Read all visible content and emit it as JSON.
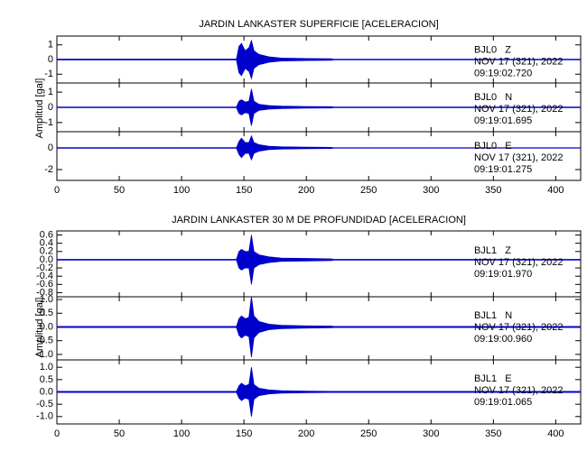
{
  "chart_data": [
    {
      "type": "area",
      "title": "JARDIN LANKASTER SUPERFICIE [ACELERACION]",
      "ylabel": "Amplitud [gal]",
      "xlim": [
        0,
        420
      ],
      "xticks": [
        0,
        50,
        100,
        150,
        200,
        250,
        300,
        350,
        400
      ],
      "color": "#0000cc",
      "x": [
        0,
        144,
        146,
        148,
        151,
        154,
        156,
        158,
        162,
        170,
        180,
        200,
        220,
        222,
        420
      ],
      "panels": [
        {
          "station": "BJL0   Z",
          "date": "NOV 17 (321), 2022",
          "time": "09:19:02.720",
          "ylim": [
            -1.6,
            1.6
          ],
          "yticks": [
            -1,
            0,
            1
          ],
          "values": [
            0.03,
            0.03,
            0.9,
            1.1,
            0.6,
            0.8,
            1.3,
            0.6,
            0.35,
            0.18,
            0.1,
            0.07,
            0.05,
            0.02,
            0.02
          ]
        },
        {
          "station": "BJL0   N",
          "date": "NOV 17 (321), 2022",
          "time": "09:19:01.695",
          "ylim": [
            -1.6,
            1.6
          ],
          "yticks": [
            -1,
            0,
            1
          ],
          "values": [
            0.02,
            0.02,
            0.4,
            0.5,
            0.35,
            0.4,
            1.2,
            0.4,
            0.2,
            0.12,
            0.08,
            0.05,
            0.04,
            0.02,
            0.02
          ]
        },
        {
          "station": "BJL0   E",
          "date": "NOV 17 (321), 2022",
          "time": "09:19:01.275",
          "ylim": [
            -3,
            1.5
          ],
          "yticks": [
            -2,
            0
          ],
          "values": [
            0.03,
            0.03,
            0.6,
            0.9,
            0.5,
            0.5,
            1.1,
            0.5,
            0.3,
            0.15,
            0.1,
            0.07,
            0.05,
            0.02,
            0.02
          ]
        }
      ]
    },
    {
      "type": "area",
      "title": "JARDIN LANKASTER 30 M DE PROFUNDIDAD [ACELERACION]",
      "ylabel": "Amplitud [gal]",
      "xlim": [
        0,
        420
      ],
      "xticks": [
        0,
        50,
        100,
        150,
        200,
        250,
        300,
        350,
        400
      ],
      "color": "#0000cc",
      "x": [
        0,
        144,
        146,
        148,
        151,
        154,
        156,
        158,
        162,
        170,
        180,
        200,
        220,
        222,
        420
      ],
      "panels": [
        {
          "station": "BJL1   Z",
          "date": "NOV 17 (321), 2022",
          "time": "09:19:01.970",
          "ylim": [
            -0.9,
            0.7
          ],
          "yticks": [
            -0.8,
            -0.6,
            -0.4,
            -0.2,
            {
              "value": 0,
              "label": "0.0"
            },
            0.2,
            0.4,
            0.6
          ],
          "values": [
            0.01,
            0.01,
            0.2,
            0.25,
            0.2,
            0.2,
            0.6,
            0.2,
            0.12,
            0.07,
            0.04,
            0.03,
            0.02,
            0.01,
            0.01
          ]
        },
        {
          "station": "BJL1   N",
          "date": "NOV 17 (321), 2022",
          "time": "09:19:00.960",
          "ylim": [
            -1.2,
            1.1
          ],
          "yticks": [
            {
              "value": -1,
              "label": "-1.0"
            },
            -0.5,
            {
              "value": 0,
              "label": "0.0"
            },
            0.5,
            {
              "value": 1,
              "label": "1.0"
            }
          ],
          "values": [
            0.02,
            0.02,
            0.3,
            0.4,
            0.3,
            0.35,
            1.1,
            0.4,
            0.2,
            0.1,
            0.06,
            0.04,
            0.03,
            0.02,
            0.02
          ]
        },
        {
          "station": "BJL1   E",
          "date": "NOV 17 (321), 2022",
          "time": "09:19:01.065",
          "ylim": [
            -1.3,
            1.3
          ],
          "yticks": [
            {
              "value": -1,
              "label": "-1.0"
            },
            -0.5,
            {
              "value": 0,
              "label": "0.0"
            },
            0.5,
            {
              "value": 1,
              "label": "1.0"
            }
          ],
          "values": [
            0.02,
            0.02,
            0.25,
            0.35,
            0.25,
            0.3,
            1.0,
            0.3,
            0.15,
            0.08,
            0.05,
            0.03,
            0.02,
            0.02,
            0.02
          ]
        }
      ]
    }
  ]
}
